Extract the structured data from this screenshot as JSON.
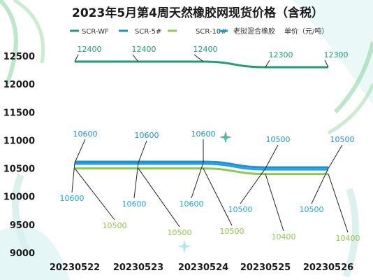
{
  "chart_data": {
    "type": "line",
    "title": "2023年5月第4周天然橡胶网现货价格（含税）",
    "categories": [
      "20230522",
      "20230523",
      "20230524",
      "20230525",
      "20230526"
    ],
    "ylim": [
      9000,
      12500
    ],
    "yticks": [
      9000,
      9500,
      10000,
      10500,
      11000,
      11500,
      12000,
      12500
    ],
    "unit_label": "单价（元/吨）",
    "legend_position": "top",
    "grid": false,
    "series": [
      {
        "name": "SCR-WF",
        "color": "#1e9e73",
        "values": [
          12400,
          12400,
          12400,
          12300,
          12300
        ],
        "labels": [
          "12400",
          "12400",
          "12400",
          "12300",
          "12300"
        ]
      },
      {
        "name": "SCR-5#",
        "color": "#1c8fd6",
        "values": [
          10600,
          10600,
          10600,
          10500,
          10500
        ],
        "labels": [
          "10600",
          "10600",
          "10600",
          "10500",
          "10500"
        ]
      },
      {
        "name": "SCR-10#",
        "color": "#8fc84a",
        "values": [
          10500,
          10500,
          10500,
          10400,
          10400
        ],
        "labels": [
          "10500",
          "10500",
          "10500",
          "10400",
          "10400"
        ]
      },
      {
        "name": "老挝混合橡胶",
        "color": "#1aa7e0",
        "values": [
          10600,
          10600,
          10600,
          10500,
          10500
        ],
        "labels": [
          "10600",
          "10600",
          "10600",
          "10500",
          "10500"
        ]
      }
    ]
  }
}
